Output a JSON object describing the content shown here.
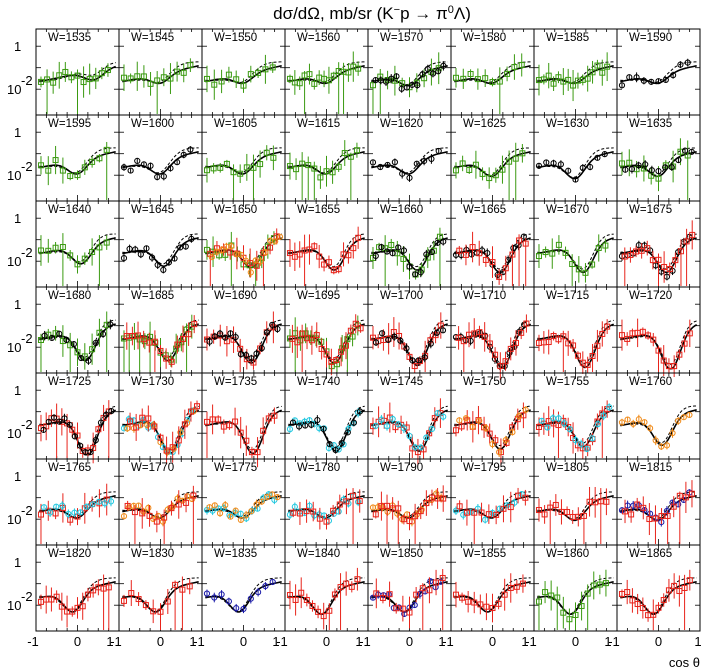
{
  "chart_data": {
    "type": "scatter",
    "title_html": "dσ/dΩ, mb/sr (K⁻p → π⁰Λ)",
    "title_parts": [
      "dσ/dΩ, mb/sr (K",
      "−",
      "p → π",
      "0",
      "Λ)"
    ],
    "xlabel": "cos θ",
    "ylabel_ticks": [
      "1",
      "10",
      "-2"
    ],
    "xlim": [
      -1,
      1
    ],
    "x_ticks": [
      "-1",
      "0",
      "1"
    ],
    "ylim_log": [
      0.001,
      5
    ],
    "grid": false,
    "legend": "none",
    "panel_label_prefix": "W=",
    "panels": [
      {
        "W": 1535,
        "depth": 0.2,
        "pos": 0.7,
        "data": [
          "green"
        ],
        "dashed": true
      },
      {
        "W": 1545,
        "depth": 0.2,
        "pos": 0.5,
        "data": [
          "green"
        ],
        "dashed": true
      },
      {
        "W": 1550,
        "depth": 0.2,
        "pos": 0.5,
        "data": [
          "green"
        ],
        "dashed": true
      },
      {
        "W": 1560,
        "depth": 0.2,
        "pos": 0.5,
        "data": [
          "green"
        ],
        "dashed": true
      },
      {
        "W": 1570,
        "depth": 0.25,
        "pos": 0.5,
        "data": [
          "green",
          "black"
        ],
        "dashed": true
      },
      {
        "W": 1580,
        "depth": 0.2,
        "pos": 0.5,
        "data": [
          "green"
        ],
        "dashed": true
      },
      {
        "W": 1585,
        "depth": 0.2,
        "pos": 0.5,
        "data": [
          "green"
        ],
        "dashed": true
      },
      {
        "W": 1590,
        "depth": 0.2,
        "pos": 0.5,
        "data": [
          "black"
        ],
        "dashed": true
      },
      {
        "W": 1595,
        "depth": 0.3,
        "pos": 0.5,
        "data": [
          "green"
        ],
        "dashed": true
      },
      {
        "W": 1600,
        "depth": 0.3,
        "pos": 0.5,
        "data": [
          "black"
        ],
        "dashed": true
      },
      {
        "W": 1605,
        "depth": 0.3,
        "pos": 0.5,
        "data": [
          "green"
        ],
        "dashed": true
      },
      {
        "W": 1615,
        "depth": 0.3,
        "pos": 0.5,
        "data": [
          "green"
        ],
        "dashed": true
      },
      {
        "W": 1620,
        "depth": 0.3,
        "pos": 0.5,
        "data": [
          "black"
        ],
        "dashed": true
      },
      {
        "W": 1625,
        "depth": 0.35,
        "pos": 0.5,
        "data": [
          "green"
        ],
        "dashed": true
      },
      {
        "W": 1630,
        "depth": 0.4,
        "pos": 0.5,
        "data": [
          "black"
        ],
        "dashed": true
      },
      {
        "W": 1635,
        "depth": 0.35,
        "pos": 0.5,
        "data": [
          "green",
          "black"
        ],
        "dashed": true
      },
      {
        "W": 1640,
        "depth": 0.4,
        "pos": 0.55,
        "data": [
          "green"
        ],
        "dashed": true
      },
      {
        "W": 1645,
        "depth": 0.45,
        "pos": 0.55,
        "data": [
          "black"
        ],
        "dashed": true
      },
      {
        "W": 1650,
        "depth": 0.5,
        "pos": 0.6,
        "data": [
          "green",
          "red",
          "orange"
        ],
        "dashed": true
      },
      {
        "W": 1655,
        "depth": 0.55,
        "pos": 0.6,
        "data": [
          "red"
        ],
        "dashed": true
      },
      {
        "W": 1660,
        "depth": 0.55,
        "pos": 0.6,
        "data": [
          "green",
          "black"
        ],
        "dashed": true
      },
      {
        "W": 1665,
        "depth": 0.6,
        "pos": 0.6,
        "data": [
          "black",
          "red"
        ],
        "dashed": true
      },
      {
        "W": 1670,
        "depth": 0.6,
        "pos": 0.6,
        "data": [
          "green"
        ],
        "dashed": true
      },
      {
        "W": 1675,
        "depth": 0.6,
        "pos": 0.6,
        "data": [
          "black",
          "red"
        ],
        "dashed": true
      },
      {
        "W": 1680,
        "depth": 0.65,
        "pos": 0.6,
        "data": [
          "green",
          "black"
        ],
        "dashed": true
      },
      {
        "W": 1685,
        "depth": 0.65,
        "pos": 0.6,
        "data": [
          "green",
          "red"
        ],
        "dashed": true
      },
      {
        "W": 1690,
        "depth": 0.7,
        "pos": 0.6,
        "data": [
          "red",
          "black"
        ],
        "dashed": true
      },
      {
        "W": 1695,
        "depth": 0.7,
        "pos": 0.6,
        "data": [
          "green",
          "red"
        ],
        "dashed": true
      },
      {
        "W": 1700,
        "depth": 0.75,
        "pos": 0.6,
        "data": [
          "red",
          "black"
        ],
        "dashed": true
      },
      {
        "W": 1710,
        "depth": 0.8,
        "pos": 0.62,
        "data": [
          "black",
          "red"
        ],
        "dashed": true
      },
      {
        "W": 1715,
        "depth": 0.8,
        "pos": 0.62,
        "data": [
          "red"
        ],
        "dashed": true
      },
      {
        "W": 1720,
        "depth": 0.85,
        "pos": 0.65,
        "data": [
          "red"
        ],
        "dashed": true
      },
      {
        "W": 1725,
        "depth": 0.85,
        "pos": 0.62,
        "data": [
          "red",
          "black"
        ],
        "dashed": true
      },
      {
        "W": 1730,
        "depth": 0.8,
        "pos": 0.62,
        "data": [
          "cyan",
          "orange",
          "red"
        ],
        "dashed": true
      },
      {
        "W": 1735,
        "depth": 0.8,
        "pos": 0.62,
        "data": [
          "red"
        ],
        "dashed": true
      },
      {
        "W": 1740,
        "depth": 0.75,
        "pos": 0.62,
        "data": [
          "cyan",
          "black"
        ],
        "dashed": true
      },
      {
        "W": 1745,
        "depth": 0.75,
        "pos": 0.62,
        "data": [
          "red",
          "cyan"
        ],
        "dashed": true
      },
      {
        "W": 1750,
        "depth": 0.7,
        "pos": 0.6,
        "data": [
          "red",
          "orange"
        ],
        "dashed": true
      },
      {
        "W": 1755,
        "depth": 0.65,
        "pos": 0.6,
        "data": [
          "red",
          "cyan"
        ],
        "dashed": true
      },
      {
        "W": 1760,
        "depth": 0.6,
        "pos": 0.55,
        "data": [
          "orange"
        ],
        "dashed": true
      },
      {
        "W": 1765,
        "depth": 0.3,
        "pos": 0.5,
        "data": [
          "red",
          "cyan"
        ],
        "dashed": true
      },
      {
        "W": 1770,
        "depth": 0.3,
        "pos": 0.5,
        "data": [
          "orange",
          "red"
        ],
        "dashed": true
      },
      {
        "W": 1775,
        "depth": 0.3,
        "pos": 0.5,
        "data": [
          "cyan",
          "orange"
        ],
        "dashed": true
      },
      {
        "W": 1780,
        "depth": 0.3,
        "pos": 0.5,
        "data": [
          "cyan",
          "red"
        ],
        "dashed": true
      },
      {
        "W": 1790,
        "depth": 0.3,
        "pos": 0.5,
        "data": [
          "orange",
          "red"
        ],
        "dashed": true
      },
      {
        "W": 1795,
        "depth": 0.3,
        "pos": 0.5,
        "data": [
          "cyan",
          "red"
        ],
        "dashed": true
      },
      {
        "W": 1805,
        "depth": 0.35,
        "pos": 0.5,
        "data": [
          "red"
        ],
        "dashed": true
      },
      {
        "W": 1815,
        "depth": 0.35,
        "pos": 0.5,
        "data": [
          "blue",
          "red"
        ],
        "dashed": true
      },
      {
        "W": 1820,
        "depth": 0.45,
        "pos": 0.45,
        "data": [
          "red"
        ],
        "dashed": true
      },
      {
        "W": 1830,
        "depth": 0.45,
        "pos": 0.45,
        "data": [
          "red"
        ],
        "dashed": true
      },
      {
        "W": 1835,
        "depth": 0.45,
        "pos": 0.45,
        "data": [
          "blue"
        ],
        "dashed": true
      },
      {
        "W": 1840,
        "depth": 0.5,
        "pos": 0.45,
        "data": [
          "red"
        ],
        "dashed": true
      },
      {
        "W": 1850,
        "depth": 0.45,
        "pos": 0.45,
        "data": [
          "blue",
          "red"
        ],
        "dashed": true
      },
      {
        "W": 1855,
        "depth": 0.45,
        "pos": 0.45,
        "data": [
          "red"
        ],
        "dashed": true
      },
      {
        "W": 1860,
        "depth": 0.5,
        "pos": 0.45,
        "data": [
          "green"
        ],
        "dashed": true
      },
      {
        "W": 1865,
        "depth": 0.5,
        "pos": 0.45,
        "data": [
          "red"
        ],
        "dashed": true
      }
    ],
    "colors": {
      "green": "#3a9a10",
      "black": "#000000",
      "red": "#e8231a",
      "orange": "#f08a18",
      "cyan": "#22c8e0",
      "blue": "#1a1aa8",
      "curve": "#000000"
    },
    "markers": {
      "green": "square",
      "black": "circle",
      "red": "square",
      "orange": "circle",
      "cyan": "circle",
      "blue": "circle"
    }
  }
}
